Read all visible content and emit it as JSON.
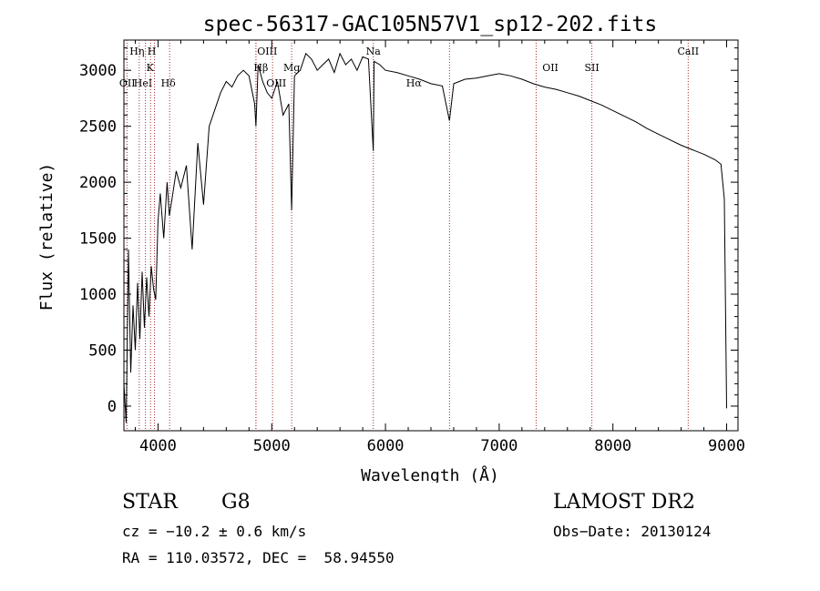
{
  "chart_data": {
    "type": "line",
    "title": "spec-56317-GAC105N57V1_sp12-202.fits",
    "xlabel": "Wavelength (Å)",
    "ylabel": "Flux (relative)",
    "xlim": [
      3700,
      9100
    ],
    "ylim": [
      -220,
      3270
    ],
    "x_ticks": [
      4000,
      5000,
      6000,
      7000,
      8000,
      9000
    ],
    "y_ticks": [
      0,
      500,
      1000,
      1500,
      2000,
      2500,
      3000
    ],
    "grid": false,
    "line_color": "#000000",
    "marker_color": "#a52a2a",
    "series": [
      {
        "x": [
          3700,
          3720,
          3740,
          3760,
          3780,
          3800,
          3820,
          3840,
          3860,
          3880,
          3900,
          3920,
          3940,
          3960,
          3980,
          4000,
          4020,
          4050,
          4080,
          4100,
          4130,
          4160,
          4200,
          4250,
          4300,
          4350,
          4400,
          4450,
          4500,
          4550,
          4600,
          4650,
          4700,
          4750,
          4800,
          4850,
          4861,
          4880,
          4920,
          4960,
          5000,
          5050,
          5100,
          5150,
          5175,
          5200,
          5250,
          5300,
          5350,
          5400,
          5450,
          5500,
          5550,
          5600,
          5650,
          5700,
          5750,
          5800,
          5850,
          5893,
          5900,
          5950,
          6000,
          6100,
          6200,
          6300,
          6400,
          6500,
          6563,
          6600,
          6700,
          6800,
          6900,
          7000,
          7100,
          7200,
          7300,
          7400,
          7500,
          7600,
          7700,
          7800,
          7900,
          8000,
          8100,
          8200,
          8300,
          8400,
          8500,
          8600,
          8700,
          8800,
          8900,
          8950,
          8980,
          9000
        ],
        "y": [
          200,
          -150,
          1400,
          300,
          900,
          500,
          1100,
          600,
          1200,
          700,
          1150,
          800,
          1250,
          1050,
          950,
          1650,
          1900,
          1500,
          2000,
          1700,
          1900,
          2100,
          1950,
          2150,
          1400,
          2350,
          1800,
          2500,
          2650,
          2800,
          2900,
          2850,
          2950,
          3000,
          2950,
          2700,
          2500,
          3050,
          2900,
          2800,
          2750,
          2900,
          2600,
          2700,
          1750,
          2950,
          3000,
          3150,
          3100,
          3000,
          3050,
          3100,
          2980,
          3150,
          3050,
          3100,
          3000,
          3120,
          3100,
          2280,
          3080,
          3050,
          3000,
          2980,
          2950,
          2920,
          2880,
          2860,
          2550,
          2880,
          2920,
          2930,
          2950,
          2970,
          2950,
          2920,
          2880,
          2850,
          2830,
          2800,
          2770,
          2730,
          2690,
          2640,
          2590,
          2540,
          2480,
          2430,
          2380,
          2330,
          2290,
          2250,
          2200,
          2160,
          1850,
          -20
        ]
      }
    ],
    "line_markers": [
      {
        "label": "OII",
        "x": 3727,
        "row": 3,
        "label_x": 3730
      },
      {
        "label": "Hη",
        "x": 3835,
        "row": 1,
        "label_x": 3815
      },
      {
        "label": "HeI",
        "x": 3889,
        "row": 3,
        "label_x": 3868
      },
      {
        "label": "K",
        "x": 3934,
        "row": 2,
        "label_x": 3930
      },
      {
        "label": "H",
        "x": 3969,
        "row": 1,
        "label_x": 3945
      },
      {
        "label": "Hδ",
        "x": 4102,
        "row": 3,
        "label_x": 4090
      },
      {
        "label": "OIII",
        "x": 4861,
        "row": 1,
        "label_x": 4960
      },
      {
        "label": "Hβ",
        "x": 4861,
        "row": 2,
        "label_x": 4905
      },
      {
        "label": "OIII",
        "x": 5007,
        "row": 3,
        "label_x": 5040
      },
      {
        "label": "Mg",
        "x": 5175,
        "row": 2,
        "label_x": 5175
      },
      {
        "label": "Na",
        "x": 5893,
        "row": 1,
        "label_x": 5893
      },
      {
        "label": "Hα",
        "x": 6563,
        "row": 3,
        "label_x": 6250
      },
      {
        "label": "OII",
        "x": 7325,
        "row": 2,
        "label_x": 7450
      },
      {
        "label": "SII",
        "x": 7815,
        "row": 2,
        "label_x": 7815
      },
      {
        "label": "CaII",
        "x": 8662,
        "row": 1,
        "label_x": 8662
      }
    ]
  },
  "info": {
    "obj_class": "STAR",
    "subclass": "G8",
    "survey": "LAMOST DR2",
    "cz": "cz = −10.2 ± 0.6 km/s",
    "obs_date": "Obs−Date: 20130124",
    "coords": "RA = 110.03572, DEC =  58.94550"
  }
}
